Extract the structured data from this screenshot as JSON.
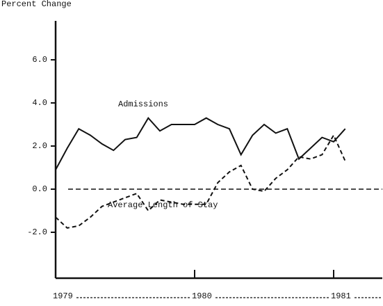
{
  "chart_data": {
    "type": "line",
    "title": "Percent Change",
    "x": [
      1979,
      1979.0833,
      1979.1667,
      1979.25,
      1979.3333,
      1979.4167,
      1979.5,
      1979.5833,
      1979.6667,
      1979.75,
      1979.8333,
      1979.9167,
      1980,
      1980.0833,
      1980.1667,
      1980.25,
      1980.3333,
      1980.4167,
      1980.5,
      1980.5833,
      1980.6667,
      1980.75,
      1980.8333,
      1980.9167,
      1981,
      1981.0833
    ],
    "series": [
      {
        "name": "Admissions",
        "color": "#111111",
        "dash": false,
        "values": [
          0.9,
          1.9,
          2.8,
          2.5,
          2.1,
          1.8,
          2.3,
          2.4,
          3.3,
          2.7,
          3.0,
          3.0,
          3.0,
          3.3,
          3.0,
          2.8,
          1.6,
          2.5,
          3.0,
          2.6,
          2.8,
          1.4,
          1.9,
          2.4,
          2.2,
          2.8
        ]
      },
      {
        "name": "Average Length of Stay",
        "color": "#111111",
        "dash": true,
        "values": [
          -1.3,
          -1.8,
          -1.7,
          -1.3,
          -0.8,
          -0.6,
          -0.4,
          -0.2,
          -1.0,
          -0.5,
          -0.6,
          -0.7,
          -0.7,
          -0.7,
          0.3,
          0.8,
          1.1,
          0.0,
          -0.1,
          0.5,
          0.9,
          1.5,
          1.4,
          1.6,
          2.5,
          1.3
        ]
      }
    ],
    "xlim": [
      1979,
      1981.35
    ],
    "xticks": [
      1979,
      1980,
      1981
    ],
    "ylim": [
      -4,
      8
    ],
    "yticks": [
      {
        "value": 6,
        "label": "6.0"
      },
      {
        "value": 4,
        "label": "4.0"
      },
      {
        "value": 2,
        "label": "2.0"
      },
      {
        "value": 0,
        "label": "0.0"
      },
      {
        "value": -2,
        "label": "-2.0"
      }
    ],
    "zero_line": true
  }
}
